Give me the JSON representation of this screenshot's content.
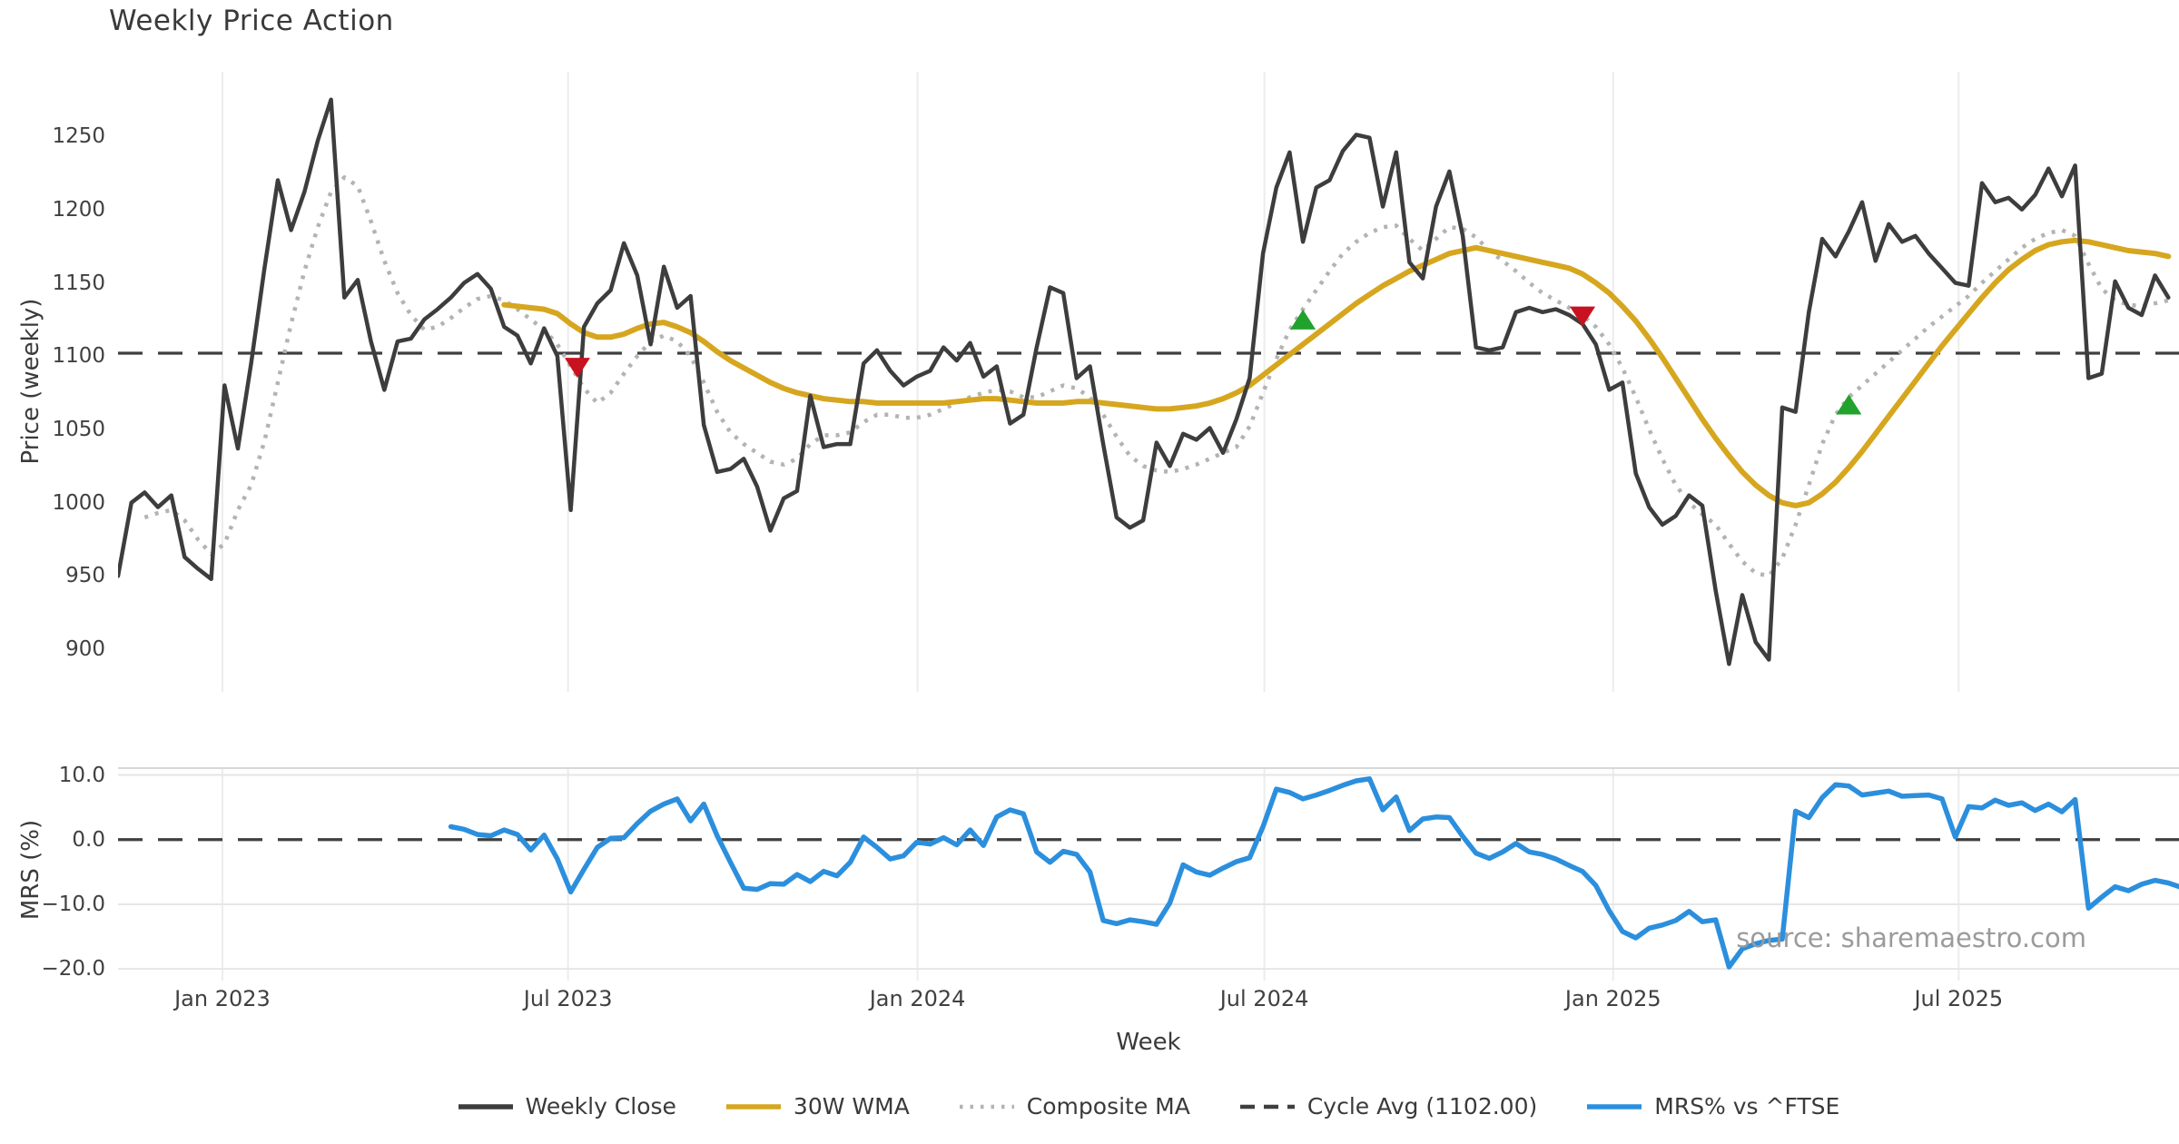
{
  "title": "Weekly Price Action",
  "source_note": "source: sharemaestro.com",
  "colors": {
    "weekly_close": "#3d3d3d",
    "wma_30w": "#d6a61f",
    "composite_ma": "#b3b3b3",
    "cycle_avg_dash": "#3f3f3f",
    "mrs_line": "#2b8fdd",
    "buy_marker": "#21a22c",
    "sell_marker": "#c9121f",
    "grid_vertical": "#ececec",
    "grid_horizontal": "#e6e6e6",
    "panel_spine": "#d8d8d8"
  },
  "legend": {
    "items": [
      {
        "label": "Weekly Close",
        "color": "#3d3d3d",
        "style": "solid"
      },
      {
        "label": "30W WMA",
        "color": "#d6a61f",
        "style": "solid"
      },
      {
        "label": "Composite MA",
        "color": "#b3b3b3",
        "style": "dotted"
      },
      {
        "label": "Cycle Avg (1102.00)",
        "color": "#3f3f3f",
        "style": "dashed"
      },
      {
        "label": "MRS% vs ^FTSE",
        "color": "#2b8fdd",
        "style": "solid"
      }
    ]
  },
  "chart_data": [
    {
      "type": "line",
      "panel": "price",
      "title": "Weekly Price Action",
      "ylabel": "Price (weekly)",
      "ylim": [
        871,
        1294
      ],
      "yticks": [
        {
          "v": 1250,
          "label": "1250"
        },
        {
          "v": 1200,
          "label": "1200"
        },
        {
          "v": 1150,
          "label": "1150"
        },
        {
          "v": 1100,
          "label": "1100"
        },
        {
          "v": 1050,
          "label": "1050"
        },
        {
          "v": 1000,
          "label": "1000"
        },
        {
          "v": 950,
          "label": "950"
        },
        {
          "v": 900,
          "label": "900"
        }
      ],
      "xlim": [
        0,
        154.8
      ],
      "xticks": [
        {
          "pos": 7.84,
          "label": "Jan 2023"
        },
        {
          "pos": 33.8,
          "label": "Jul 2023"
        },
        {
          "pos": 60.05,
          "label": "Jan 2024"
        },
        {
          "pos": 86.1,
          "label": "Jul 2024"
        },
        {
          "pos": 112.3,
          "label": "Jan 2025"
        },
        {
          "pos": 138.25,
          "label": "Jul 2025"
        }
      ],
      "cycle_avg": {
        "value": 1102.0,
        "label": "Cycle Avg (1102.00)"
      },
      "series": [
        {
          "name": "Composite MA",
          "color": "#b3b3b3",
          "width": 4.5,
          "dash": "4 8",
          "start_index": 2,
          "values": [
            990,
            993,
            995,
            988,
            975,
            965,
            972,
            995,
            1012,
            1042,
            1082,
            1122,
            1158,
            1188,
            1212,
            1222,
            1216,
            1192,
            1165,
            1143,
            1128,
            1118,
            1120,
            1126,
            1133,
            1139,
            1141,
            1138,
            1132,
            1125,
            1118,
            1108,
            1093,
            1078,
            1068,
            1075,
            1088,
            1100,
            1110,
            1114,
            1110,
            1100,
            1082,
            1062,
            1048,
            1040,
            1034,
            1028,
            1026,
            1030,
            1040,
            1046,
            1046,
            1048,
            1055,
            1060,
            1060,
            1058,
            1058,
            1060,
            1064,
            1068,
            1072,
            1075,
            1077,
            1076,
            1072,
            1072,
            1076,
            1080,
            1078,
            1072,
            1060,
            1045,
            1032,
            1025,
            1022,
            1021,
            1023,
            1026,
            1030,
            1034,
            1038,
            1052,
            1075,
            1098,
            1118,
            1132,
            1145,
            1158,
            1170,
            1178,
            1184,
            1188,
            1189,
            1180,
            1172,
            1180,
            1188,
            1187,
            1181,
            1172,
            1165,
            1158,
            1150,
            1143,
            1138,
            1133,
            1128,
            1120,
            1108,
            1092,
            1072,
            1050,
            1030,
            1012,
            1000,
            992,
            985,
            972,
            960,
            952,
            950,
            962,
            985,
            1012,
            1040,
            1060,
            1072,
            1080,
            1088,
            1096,
            1104,
            1112,
            1120,
            1127,
            1134,
            1141,
            1150,
            1158,
            1166,
            1174,
            1180,
            1184,
            1186,
            1182,
            1163,
            1146,
            1138,
            1135,
            1134,
            1136,
            1138
          ]
        },
        {
          "name": "30W WMA",
          "color": "#d6a61f",
          "width": 6,
          "dash": "",
          "start_index": 29,
          "values": [
            1135,
            1134,
            1133,
            1132,
            1129,
            1122,
            1116,
            1113,
            1113,
            1115,
            1119,
            1122,
            1123,
            1120,
            1116,
            1110,
            1103,
            1097,
            1092,
            1087,
            1082,
            1078,
            1075,
            1073,
            1071,
            1070,
            1069,
            1069,
            1068,
            1068,
            1068,
            1068,
            1068,
            1068,
            1069,
            1070,
            1071,
            1071,
            1070,
            1069,
            1068,
            1068,
            1068,
            1069,
            1069,
            1068,
            1067,
            1066,
            1065,
            1064,
            1064,
            1065,
            1066,
            1068,
            1071,
            1075,
            1080,
            1087,
            1094,
            1101,
            1108,
            1115,
            1122,
            1129,
            1136,
            1142,
            1148,
            1153,
            1158,
            1162,
            1166,
            1170,
            1172,
            1174,
            1172,
            1170,
            1168,
            1166,
            1164,
            1162,
            1160,
            1156,
            1150,
            1143,
            1134,
            1124,
            1112,
            1099,
            1085,
            1071,
            1057,
            1044,
            1032,
            1021,
            1012,
            1005,
            1000,
            998,
            1000,
            1006,
            1014,
            1024,
            1035,
            1047,
            1059,
            1071,
            1083,
            1095,
            1107,
            1118,
            1129,
            1140,
            1150,
            1159,
            1166,
            1172,
            1176,
            1178,
            1179,
            1178,
            1176,
            1174,
            1172,
            1171,
            1170,
            1168
          ]
        },
        {
          "name": "Weekly Close",
          "color": "#3d3d3d",
          "width": 4.5,
          "dash": "",
          "start_index": 0,
          "values": [
            950,
            1000,
            1007,
            997,
            1005,
            963,
            955,
            948,
            1080,
            1037,
            1095,
            1160,
            1220,
            1186,
            1212,
            1247,
            1275,
            1140,
            1152,
            1110,
            1077,
            1110,
            1112,
            1125,
            1132,
            1140,
            1150,
            1156,
            1146,
            1120,
            1114,
            1095,
            1119,
            1100,
            995,
            1120,
            1136,
            1145,
            1177,
            1155,
            1108,
            1161,
            1133,
            1141,
            1053,
            1021,
            1023,
            1030,
            1011,
            981,
            1003,
            1008,
            1073,
            1038,
            1040,
            1040,
            1095,
            1104,
            1090,
            1080,
            1086,
            1090,
            1106,
            1097,
            1109,
            1086,
            1093,
            1054,
            1060,
            1106,
            1147,
            1143,
            1085,
            1093,
            1040,
            990,
            983,
            988,
            1041,
            1025,
            1047,
            1043,
            1051,
            1034,
            1057,
            1085,
            1170,
            1215,
            1239,
            1178,
            1215,
            1220,
            1240,
            1251,
            1249,
            1202,
            1239,
            1164,
            1153,
            1202,
            1226,
            1182,
            1106,
            1104,
            1106,
            1130,
            1133,
            1130,
            1132,
            1128,
            1122,
            1108,
            1077,
            1082,
            1020,
            997,
            985,
            991,
            1005,
            998,
            940,
            890,
            937,
            905,
            893,
            1065,
            1062,
            1130,
            1180,
            1168,
            1185,
            1205,
            1165,
            1190,
            1178,
            1182,
            1170,
            1160,
            1150,
            1148,
            1218,
            1205,
            1208,
            1200,
            1210,
            1228,
            1209,
            1230,
            1085,
            1088,
            1151,
            1133,
            1128,
            1155,
            1140
          ]
        }
      ],
      "markers": {
        "buy": {
          "color": "#21a22c",
          "shape": "triangle-up",
          "points": [
            [
              89,
              1125
            ],
            [
              130,
              1067
            ]
          ]
        },
        "sell": {
          "color": "#c9121f",
          "shape": "triangle-down",
          "points": [
            [
              34.5,
              1092
            ],
            [
              110,
              1127
            ]
          ]
        }
      }
    },
    {
      "type": "line",
      "panel": "mrs",
      "ylabel": "MRS (%)",
      "xlabel": "Week",
      "ylim": [
        -21.8,
        11.2
      ],
      "yticks": [
        {
          "v": 10,
          "label": "10.0"
        },
        {
          "v": 0,
          "label": "0.0"
        },
        {
          "v": -10,
          "label": "−10.0"
        },
        {
          "v": -20,
          "label": "−20.0"
        }
      ],
      "xlim": [
        0,
        154.8
      ],
      "zero_line": 0,
      "hgrid": [
        10,
        -10,
        -20
      ],
      "series": [
        {
          "name": "MRS% vs ^FTSE",
          "color": "#2b8fdd",
          "width": 5.5,
          "dash": "",
          "start_index": 25,
          "values": [
            2.0,
            1.6,
            0.8,
            0.6,
            1.5,
            0.8,
            -1.6,
            0.7,
            -3.0,
            -8.1,
            -4.6,
            -1.2,
            0.2,
            0.3,
            2.5,
            4.4,
            5.5,
            6.3,
            2.9,
            5.5,
            0.6,
            -3.5,
            -7.5,
            -7.7,
            -6.8,
            -6.9,
            -5.4,
            -6.5,
            -4.9,
            -5.6,
            -3.5,
            0.4,
            -1.2,
            -3.0,
            -2.5,
            -0.4,
            -0.7,
            0.3,
            -0.8,
            1.5,
            -0.9,
            3.5,
            4.6,
            4.0,
            -1.9,
            -3.5,
            -1.8,
            -2.3,
            -5.0,
            -12.5,
            -13.0,
            -12.4,
            -12.7,
            -13.1,
            -9.8,
            -3.9,
            -5.0,
            -5.5,
            -4.4,
            -3.4,
            -2.8,
            2.0,
            7.8,
            7.3,
            6.3,
            6.9,
            7.6,
            8.4,
            9.1,
            9.4,
            4.6,
            6.6,
            1.4,
            3.2,
            3.5,
            3.4,
            0.5,
            -2.1,
            -2.9,
            -1.9,
            -0.6,
            -1.9,
            -2.3,
            -3.0,
            -4.0,
            -4.9,
            -7.1,
            -11.0,
            -14.2,
            -15.2,
            -13.7,
            -13.2,
            -12.5,
            -11.1,
            -12.7,
            -12.4,
            -19.7,
            -16.9,
            -16.1,
            -15.6,
            -15.4,
            4.4,
            3.4,
            6.5,
            8.5,
            8.3,
            6.9,
            7.2,
            7.5,
            6.7,
            6.8,
            6.9,
            6.3,
            0.4,
            5.1,
            4.9,
            6.1,
            5.3,
            5.7,
            4.5,
            5.5,
            4.3,
            6.2,
            -10.6,
            -8.9,
            -7.3,
            -7.9,
            -6.9,
            -6.3,
            -6.7,
            -7.4
          ]
        }
      ]
    }
  ]
}
